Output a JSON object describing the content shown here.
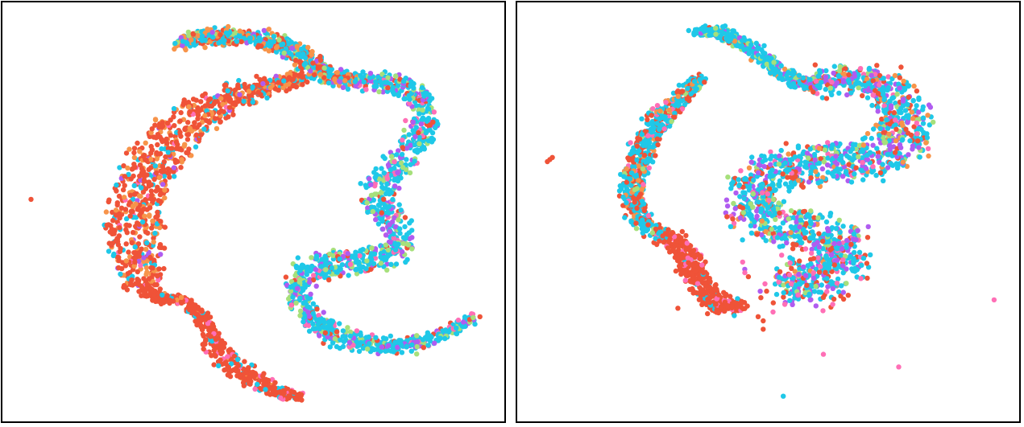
{
  "palette": {
    "red": "#ef5338",
    "orange": "#f7944a",
    "cyan": "#1fc8e8",
    "lightgreen": "#a6e07b",
    "purple": "#b05cf0",
    "pink": "#ff6fb6"
  },
  "chart_data": [
    {
      "type": "scatter",
      "title": "",
      "xlabel": "",
      "ylabel": "",
      "grid": false,
      "legend": "none",
      "axes_visible": false,
      "xlim": [
        0,
        1
      ],
      "ylim": [
        0,
        1
      ],
      "series": [
        {
          "shape": "strand",
          "color_mix": [
            [
              "red",
              0.62
            ],
            [
              "orange",
              0.22
            ],
            [
              "cyan",
              0.1
            ],
            [
              "purple",
              0.03
            ],
            [
              "pink",
              0.03
            ]
          ],
          "count": 900,
          "spread": 0.006,
          "path": [
            [
              0.6,
              0.18
            ],
            [
              0.53,
              0.2
            ],
            [
              0.45,
              0.23
            ],
            [
              0.38,
              0.28
            ],
            [
              0.32,
              0.35
            ],
            [
              0.28,
              0.43
            ],
            [
              0.26,
              0.52
            ],
            [
              0.27,
              0.61
            ],
            [
              0.28,
              0.68
            ]
          ],
          "width": [
            0.01,
            0.015,
            0.03,
            0.045,
            0.05,
            0.05,
            0.055,
            0.05,
            0.035
          ]
        },
        {
          "shape": "strand",
          "color_mix": [
            [
              "cyan",
              0.42
            ],
            [
              "orange",
              0.2
            ],
            [
              "red",
              0.22
            ],
            [
              "lightgreen",
              0.08
            ],
            [
              "purple",
              0.08
            ]
          ],
          "count": 650,
          "spread": 0.006,
          "path": [
            [
              0.35,
              0.1
            ],
            [
              0.4,
              0.08
            ],
            [
              0.47,
              0.08
            ],
            [
              0.53,
              0.09
            ],
            [
              0.57,
              0.11
            ],
            [
              0.61,
              0.14
            ],
            [
              0.64,
              0.17
            ],
            [
              0.67,
              0.18
            ],
            [
              0.71,
              0.19
            ]
          ],
          "width": [
            0.006,
            0.012,
            0.015,
            0.016,
            0.018,
            0.02,
            0.018,
            0.016,
            0.016
          ]
        },
        {
          "shape": "strand",
          "color_mix": [
            [
              "cyan",
              0.58
            ],
            [
              "lightgreen",
              0.14
            ],
            [
              "purple",
              0.14
            ],
            [
              "pink",
              0.07
            ],
            [
              "red",
              0.07
            ]
          ],
          "count": 1300,
          "spread": 0.005,
          "path": [
            [
              0.71,
              0.19
            ],
            [
              0.77,
              0.19
            ],
            [
              0.82,
              0.21
            ],
            [
              0.845,
              0.26
            ],
            [
              0.84,
              0.31
            ],
            [
              0.81,
              0.36
            ],
            [
              0.77,
              0.4
            ],
            [
              0.745,
              0.45
            ],
            [
              0.76,
              0.5
            ],
            [
              0.79,
              0.54
            ],
            [
              0.79,
              0.59
            ],
            [
              0.75,
              0.61
            ],
            [
              0.68,
              0.62
            ],
            [
              0.62,
              0.63
            ],
            [
              0.59,
              0.67
            ],
            [
              0.6,
              0.73
            ],
            [
              0.64,
              0.78
            ],
            [
              0.7,
              0.81
            ],
            [
              0.76,
              0.82
            ],
            [
              0.82,
              0.82
            ],
            [
              0.88,
              0.79
            ],
            [
              0.94,
              0.75
            ]
          ],
          "width": [
            0.015,
            0.02,
            0.025,
            0.025,
            0.028,
            0.03,
            0.03,
            0.028,
            0.03,
            0.03,
            0.025,
            0.025,
            0.028,
            0.028,
            0.025,
            0.025,
            0.022,
            0.02,
            0.018,
            0.015,
            0.01,
            0.005
          ]
        },
        {
          "shape": "strand",
          "color_mix": [
            [
              "red",
              0.82
            ],
            [
              "pink",
              0.08
            ],
            [
              "cyan",
              0.08
            ],
            [
              "orange",
              0.02
            ]
          ],
          "count": 480,
          "spread": 0.004,
          "path": [
            [
              0.28,
              0.68
            ],
            [
              0.3,
              0.7
            ],
            [
              0.36,
              0.71
            ],
            [
              0.39,
              0.74
            ],
            [
              0.41,
              0.78
            ],
            [
              0.43,
              0.83
            ],
            [
              0.46,
              0.87
            ],
            [
              0.5,
              0.9
            ],
            [
              0.55,
              0.93
            ],
            [
              0.6,
              0.94
            ]
          ],
          "width": [
            0.012,
            0.01,
            0.008,
            0.01,
            0.015,
            0.022,
            0.025,
            0.02,
            0.012,
            0.006
          ]
        },
        {
          "shape": "scatter",
          "color": "red",
          "points": [
            [
              0.057,
              0.47
            ]
          ]
        }
      ]
    },
    {
      "type": "scatter",
      "title": "",
      "xlabel": "",
      "ylabel": "",
      "grid": false,
      "legend": "none",
      "axes_visible": false,
      "xlim": [
        0,
        1
      ],
      "ylim": [
        0,
        1
      ],
      "series": [
        {
          "shape": "strand",
          "color_mix": [
            [
              "cyan",
              0.55
            ],
            [
              "red",
              0.25
            ],
            [
              "orange",
              0.1
            ],
            [
              "pink",
              0.05
            ],
            [
              "lightgreen",
              0.05
            ]
          ],
          "count": 650,
          "spread": 0.006,
          "path": [
            [
              0.37,
              0.18
            ],
            [
              0.34,
              0.21
            ],
            [
              0.3,
              0.26
            ],
            [
              0.26,
              0.32
            ],
            [
              0.24,
              0.38
            ],
            [
              0.23,
              0.44
            ],
            [
              0.235,
              0.5
            ],
            [
              0.26,
              0.54
            ],
            [
              0.3,
              0.56
            ]
          ],
          "width": [
            0.006,
            0.012,
            0.018,
            0.022,
            0.022,
            0.02,
            0.015,
            0.012,
            0.01
          ]
        },
        {
          "shape": "strand",
          "color_mix": [
            [
              "red",
              0.85
            ],
            [
              "pink",
              0.1
            ],
            [
              "cyan",
              0.05
            ]
          ],
          "count": 420,
          "spread": 0.006,
          "path": [
            [
              0.3,
              0.56
            ],
            [
              0.33,
              0.59
            ],
            [
              0.35,
              0.63
            ],
            [
              0.37,
              0.68
            ],
            [
              0.39,
              0.71
            ],
            [
              0.42,
              0.73
            ],
            [
              0.45,
              0.72
            ]
          ],
          "width": [
            0.012,
            0.018,
            0.02,
            0.022,
            0.02,
            0.015,
            0.008
          ]
        },
        {
          "shape": "strand",
          "color_mix": [
            [
              "cyan",
              0.72
            ],
            [
              "purple",
              0.1
            ],
            [
              "lightgreen",
              0.08
            ],
            [
              "red",
              0.05
            ],
            [
              "orange",
              0.05
            ]
          ],
          "count": 420,
          "spread": 0.004,
          "path": [
            [
              0.35,
              0.07
            ],
            [
              0.4,
              0.07
            ],
            [
              0.44,
              0.09
            ],
            [
              0.48,
              0.12
            ],
            [
              0.51,
              0.15
            ],
            [
              0.54,
              0.18
            ],
            [
              0.57,
              0.195
            ],
            [
              0.6,
              0.19
            ]
          ],
          "width": [
            0.006,
            0.01,
            0.012,
            0.014,
            0.014,
            0.014,
            0.015,
            0.015
          ]
        },
        {
          "shape": "strand",
          "color_mix": [
            [
              "cyan",
              0.52
            ],
            [
              "purple",
              0.16
            ],
            [
              "lightgreen",
              0.1
            ],
            [
              "red",
              0.12
            ],
            [
              "pink",
              0.05
            ],
            [
              "orange",
              0.05
            ]
          ],
          "count": 1600,
          "spread": 0.01,
          "path": [
            [
              0.59,
              0.19
            ],
            [
              0.66,
              0.18
            ],
            [
              0.73,
              0.2
            ],
            [
              0.77,
              0.24
            ],
            [
              0.78,
              0.29
            ],
            [
              0.76,
              0.34
            ],
            [
              0.7,
              0.37
            ],
            [
              0.62,
              0.38
            ],
            [
              0.54,
              0.39
            ],
            [
              0.48,
              0.42
            ],
            [
              0.46,
              0.46
            ],
            [
              0.48,
              0.51
            ],
            [
              0.55,
              0.54
            ],
            [
              0.63,
              0.55
            ],
            [
              0.66,
              0.59
            ],
            [
              0.64,
              0.64
            ],
            [
              0.58,
              0.66
            ],
            [
              0.53,
              0.68
            ]
          ],
          "width": [
            0.018,
            0.025,
            0.035,
            0.045,
            0.05,
            0.05,
            0.045,
            0.04,
            0.04,
            0.045,
            0.045,
            0.045,
            0.04,
            0.04,
            0.04,
            0.045,
            0.04,
            0.03
          ]
        },
        {
          "shape": "scatter",
          "color_mix": [
            [
              "red",
              0.35
            ],
            [
              "pink",
              0.25
            ],
            [
              "purple",
              0.2
            ],
            [
              "cyan",
              0.2
            ]
          ],
          "count": 70,
          "bounds": [
            [
              0.44,
              0.55
            ],
            [
              0.66,
              0.74
            ]
          ]
        },
        {
          "shape": "scatter",
          "color": "red",
          "points": [
            [
              0.06,
              0.38
            ],
            [
              0.065,
              0.375
            ],
            [
              0.07,
              0.37
            ],
            [
              0.49,
              0.76
            ],
            [
              0.49,
              0.78
            ],
            [
              0.48,
              0.75
            ],
            [
              0.32,
              0.73
            ]
          ]
        },
        {
          "shape": "scatter",
          "color": "pink",
          "points": [
            [
              0.61,
              0.84
            ],
            [
              0.76,
              0.87
            ],
            [
              0.95,
              0.71
            ]
          ]
        },
        {
          "shape": "scatter",
          "color": "cyan",
          "points": [
            [
              0.53,
              0.94
            ]
          ]
        }
      ]
    }
  ]
}
